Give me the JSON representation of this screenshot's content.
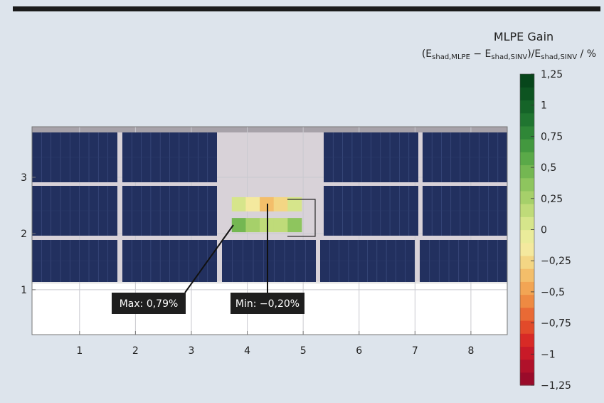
{
  "chart_data": {
    "type": "heatmap",
    "title": "MLPE Gain",
    "colorbar_label": {
      "open": "(E",
      "sub1": "shad,MLPE",
      "minus": " − E",
      "sub2": "shad,SINV",
      "div": ")/E",
      "sub3": "shad,SINV",
      "unit": " / %"
    },
    "x_ticks": [
      1,
      2,
      3,
      4,
      5,
      6,
      7,
      8
    ],
    "y_ticks": [
      1,
      2,
      3
    ],
    "xlim": [
      0.15,
      8.65
    ],
    "ylim": [
      0.2,
      3.9
    ],
    "colorbar": {
      "min": -1.25,
      "max": 1.25,
      "step": 0.125,
      "ticks": [
        1.25,
        1,
        0.75,
        0.5,
        0.25,
        0,
        -0.25,
        -0.5,
        -0.75,
        -1,
        -1.25
      ],
      "tick_labels": [
        "1,25",
        "1",
        "0,75",
        "0,5",
        "0,25",
        "0",
        "−0,25",
        "−0,5",
        "−0,75",
        "−1",
        "−1,25"
      ],
      "colors_low_to_high": [
        "#9a0b2a",
        "#b0112a",
        "#c81a28",
        "#d82a26",
        "#e24a2a",
        "#e96a35",
        "#ee8a42",
        "#f2a554",
        "#f3be6a",
        "#f3d684",
        "#f4e99e",
        "#eaec9a",
        "#d6e58b",
        "#bfdb79",
        "#a6d06a",
        "#8ec55e",
        "#74b752",
        "#5aa948",
        "#43983f",
        "#2f8737",
        "#207530",
        "#156428",
        "#0d5421",
        "#07461b"
      ]
    },
    "cells": [
      {
        "x": 3.85,
        "y": 2.52,
        "value": 0.35
      },
      {
        "x": 4.1,
        "y": 2.52,
        "value": 0.1
      },
      {
        "x": 4.35,
        "y": 2.52,
        "value": -0.2
      },
      {
        "x": 4.6,
        "y": 2.52,
        "value": -0.1
      },
      {
        "x": 4.85,
        "y": 2.52,
        "value": 0.3
      },
      {
        "x": 3.85,
        "y": 2.15,
        "value": 0.79
      },
      {
        "x": 4.1,
        "y": 2.15,
        "value": 0.5
      },
      {
        "x": 4.35,
        "y": 2.15,
        "value": 0.45
      },
      {
        "x": 4.6,
        "y": 2.15,
        "value": 0.4
      },
      {
        "x": 4.85,
        "y": 2.15,
        "value": 0.7
      }
    ],
    "annotations": [
      {
        "label": "Max: 0,79%",
        "value": 0.79
      },
      {
        "label": "Min: −0,20%",
        "value": -0.2
      }
    ]
  }
}
